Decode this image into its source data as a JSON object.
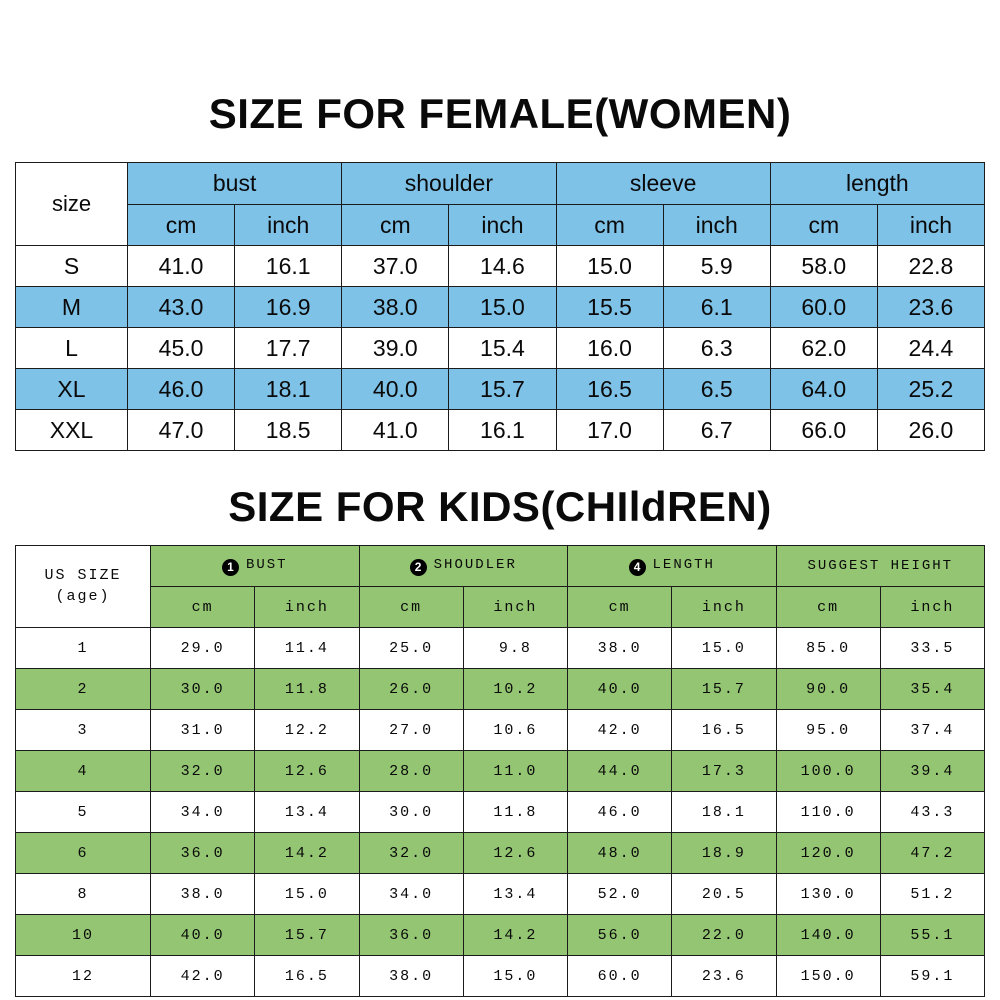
{
  "page": {
    "background": "#ffffff",
    "border_color": "#1b1b1b"
  },
  "chart_data": [
    {
      "type": "table",
      "title": "SIZE FOR FEMALE(WOMEN)",
      "theme_color": "#7ec2e8",
      "corner_header": "size",
      "group_headers": [
        {
          "badge": "",
          "badge_name": "",
          "label": "bust"
        },
        {
          "badge": "",
          "badge_name": "",
          "label": "shoulder"
        },
        {
          "badge": "",
          "badge_name": "",
          "label": "sleeve"
        },
        {
          "badge": "",
          "badge_name": "",
          "label": "length"
        }
      ],
      "unit_headers": [
        "cm",
        "inch"
      ],
      "rows": [
        {
          "label": "S",
          "highlighted": false,
          "values": [
            "41.0",
            "16.1",
            "37.0",
            "14.6",
            "15.0",
            "5.9",
            "58.0",
            "22.8"
          ]
        },
        {
          "label": "M",
          "highlighted": true,
          "values": [
            "43.0",
            "16.9",
            "38.0",
            "15.0",
            "15.5",
            "6.1",
            "60.0",
            "23.6"
          ]
        },
        {
          "label": "L",
          "highlighted": false,
          "values": [
            "45.0",
            "17.7",
            "39.0",
            "15.4",
            "16.0",
            "6.3",
            "62.0",
            "24.4"
          ]
        },
        {
          "label": "XL",
          "highlighted": true,
          "values": [
            "46.0",
            "18.1",
            "40.0",
            "15.7",
            "16.5",
            "6.5",
            "64.0",
            "25.2"
          ]
        },
        {
          "label": "XXL",
          "highlighted": false,
          "values": [
            "47.0",
            "18.5",
            "41.0",
            "16.1",
            "17.0",
            "6.7",
            "66.0",
            "26.0"
          ]
        }
      ]
    },
    {
      "type": "table",
      "title": "SIZE FOR KIDS(CHIldREN)",
      "theme_color": "#93c572",
      "corner_header": "US SIZE\n(age)",
      "group_headers": [
        {
          "badge": "1",
          "badge_name": "circled-1-icon",
          "label": "BUST"
        },
        {
          "badge": "2",
          "badge_name": "circled-2-icon",
          "label": "SHOUDLER"
        },
        {
          "badge": "4",
          "badge_name": "circled-4-icon",
          "label": "LENGTH"
        },
        {
          "badge": "",
          "badge_name": "",
          "label": "SUGGEST HEIGHT"
        }
      ],
      "unit_headers": [
        "cm",
        "inch"
      ],
      "rows": [
        {
          "label": "1",
          "highlighted": false,
          "values": [
            "29.0",
            "11.4",
            "25.0",
            "9.8",
            "38.0",
            "15.0",
            "85.0",
            "33.5"
          ]
        },
        {
          "label": "2",
          "highlighted": true,
          "values": [
            "30.0",
            "11.8",
            "26.0",
            "10.2",
            "40.0",
            "15.7",
            "90.0",
            "35.4"
          ]
        },
        {
          "label": "3",
          "highlighted": false,
          "values": [
            "31.0",
            "12.2",
            "27.0",
            "10.6",
            "42.0",
            "16.5",
            "95.0",
            "37.4"
          ]
        },
        {
          "label": "4",
          "highlighted": true,
          "values": [
            "32.0",
            "12.6",
            "28.0",
            "11.0",
            "44.0",
            "17.3",
            "100.0",
            "39.4"
          ]
        },
        {
          "label": "5",
          "highlighted": false,
          "values": [
            "34.0",
            "13.4",
            "30.0",
            "11.8",
            "46.0",
            "18.1",
            "110.0",
            "43.3"
          ]
        },
        {
          "label": "6",
          "highlighted": true,
          "values": [
            "36.0",
            "14.2",
            "32.0",
            "12.6",
            "48.0",
            "18.9",
            "120.0",
            "47.2"
          ]
        },
        {
          "label": "8",
          "highlighted": false,
          "values": [
            "38.0",
            "15.0",
            "34.0",
            "13.4",
            "52.0",
            "20.5",
            "130.0",
            "51.2"
          ]
        },
        {
          "label": "10",
          "highlighted": true,
          "values": [
            "40.0",
            "15.7",
            "36.0",
            "14.2",
            "56.0",
            "22.0",
            "140.0",
            "55.1"
          ]
        },
        {
          "label": "12",
          "highlighted": false,
          "values": [
            "42.0",
            "16.5",
            "38.0",
            "15.0",
            "60.0",
            "23.6",
            "150.0",
            "59.1"
          ]
        }
      ]
    }
  ]
}
